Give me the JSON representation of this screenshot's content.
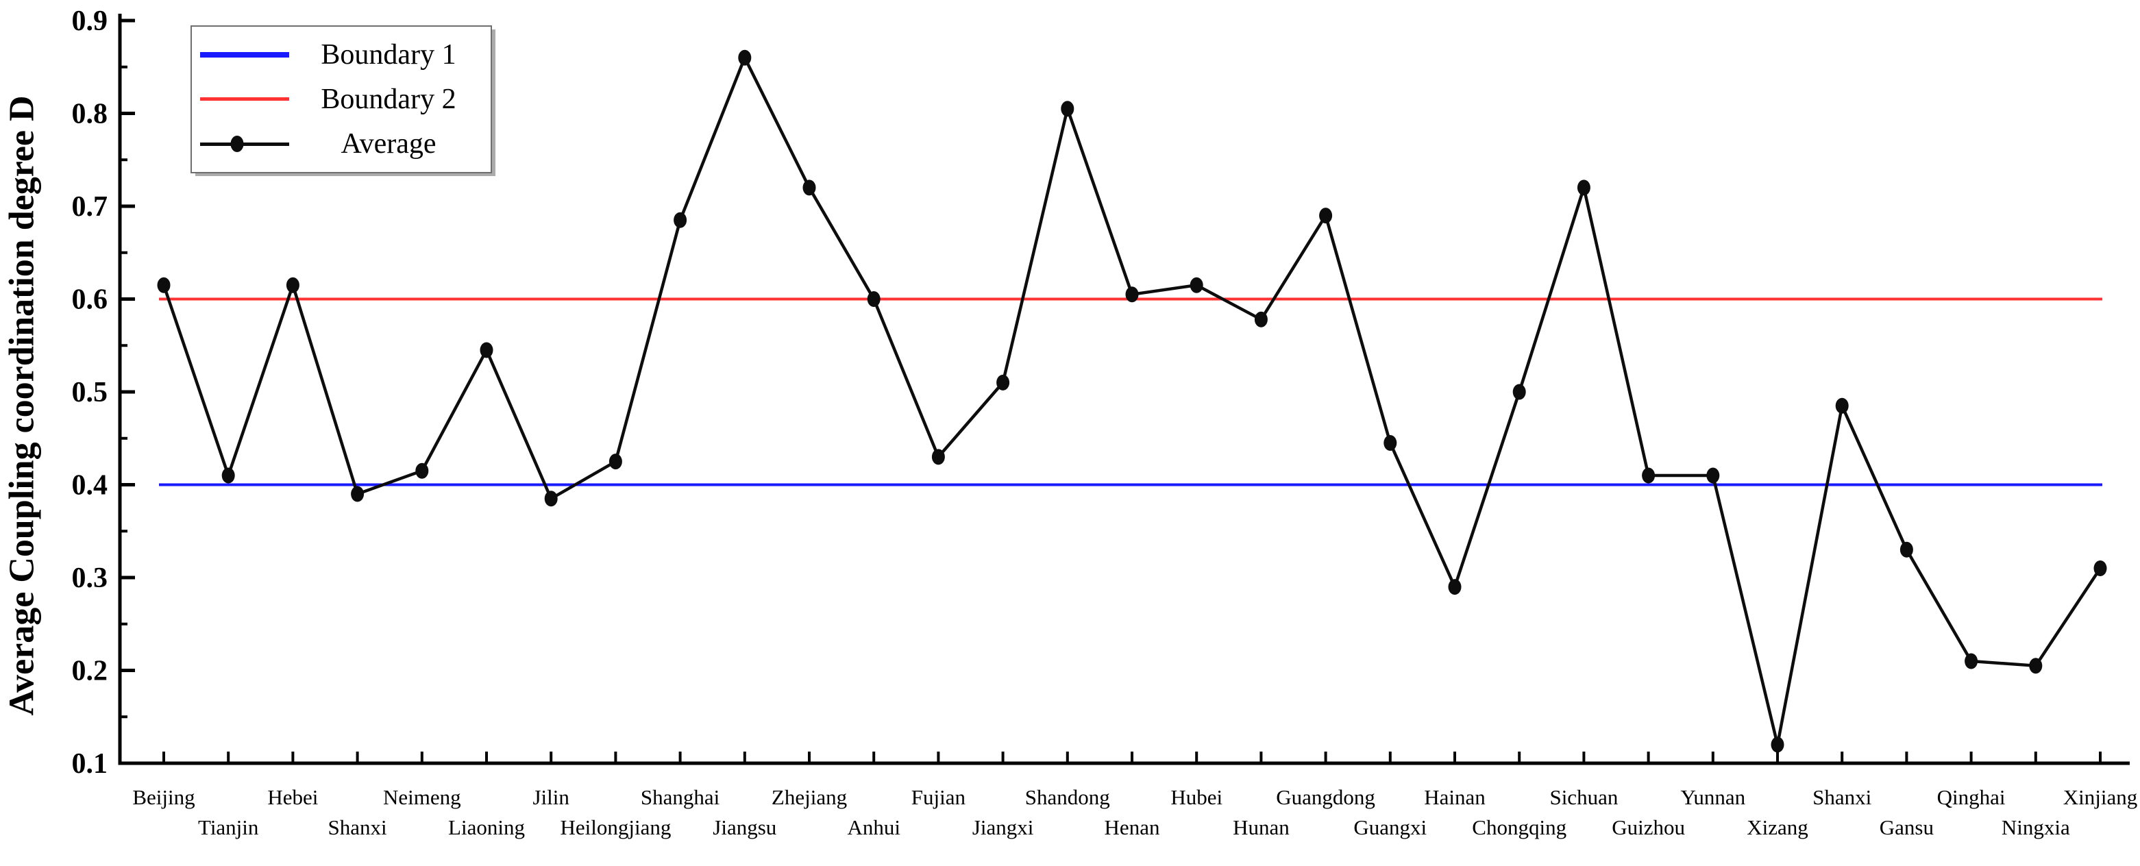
{
  "legend": {
    "items": [
      {
        "label": "Boundary 1",
        "color": "#1a1aff",
        "marker": false
      },
      {
        "label": "Boundary 2",
        "color": "#ff3333",
        "marker": false
      },
      {
        "label": "Average",
        "color": "#0d0d0d",
        "marker": true
      }
    ]
  },
  "chart_data": {
    "type": "line",
    "title": "",
    "xlabel": "",
    "ylabel": "Average Coupling coordination degree D",
    "ylim": [
      0.1,
      0.9
    ],
    "y_ticks": [
      0.1,
      0.2,
      0.3,
      0.4,
      0.5,
      0.6,
      0.7,
      0.8,
      0.9
    ],
    "y_minor_tick_step": 0.05,
    "grid": false,
    "legend_position": "upper-left",
    "x_label_layout": "staggered-two-rows",
    "categories": [
      "Beijing",
      "Tianjin",
      "Hebei",
      "Shanxi",
      "Neimeng",
      "Liaoning",
      "Jilin",
      "Heilongjiang",
      "Shanghai",
      "Jiangsu",
      "Zhejiang",
      "Anhui",
      "Fujian",
      "Jiangxi",
      "Shandong",
      "Henan",
      "Hubei",
      "Hunan",
      "Guangdong",
      "Guangxi",
      "Hainan",
      "Chongqing",
      "Sichuan",
      "Guizhou",
      "Yunnan",
      "Xizang",
      "Shanxi",
      "Gansu",
      "Qinghai",
      "Ningxia",
      "Xinjiang"
    ],
    "series": [
      {
        "name": "Boundary 1",
        "type": "hline",
        "value": 0.4,
        "color": "#1a1aff"
      },
      {
        "name": "Boundary 2",
        "type": "hline",
        "value": 0.6,
        "color": "#ff3333"
      },
      {
        "name": "Average",
        "type": "line",
        "color": "#0d0d0d",
        "marker": "filled-circle",
        "values": [
          0.615,
          0.41,
          0.615,
          0.39,
          0.415,
          0.545,
          0.385,
          0.425,
          0.685,
          0.86,
          0.72,
          0.6,
          0.43,
          0.51,
          0.805,
          0.605,
          0.615,
          0.578,
          0.69,
          0.445,
          0.29,
          0.5,
          0.72,
          0.41,
          0.41,
          0.12,
          0.485,
          0.33,
          0.21,
          0.205,
          0.31
        ]
      }
    ]
  }
}
